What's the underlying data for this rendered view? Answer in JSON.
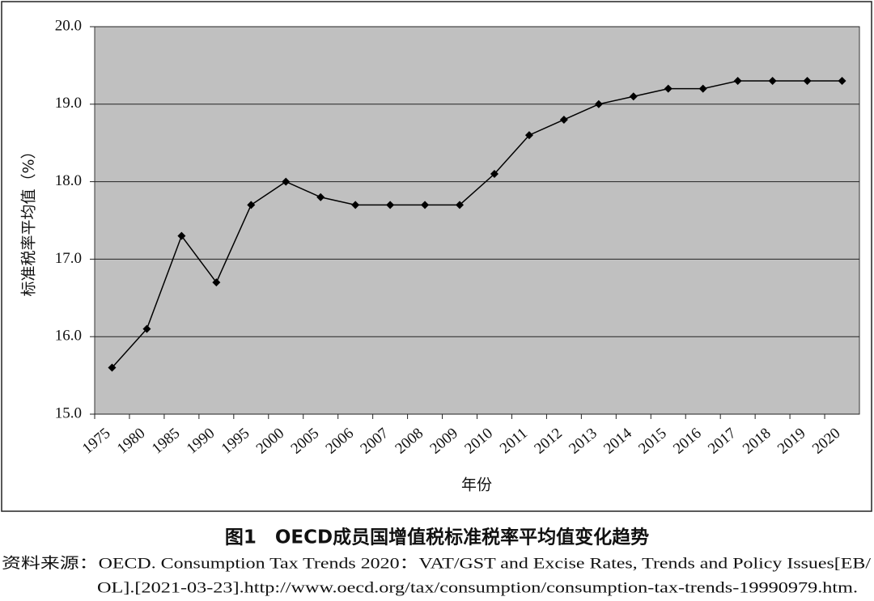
{
  "chart_data": {
    "type": "line",
    "categories": [
      "1975",
      "1980",
      "1985",
      "1990",
      "1995",
      "2000",
      "2005",
      "2006",
      "2007",
      "2008",
      "2009",
      "2010",
      "2011",
      "2012",
      "2013",
      "2014",
      "2015",
      "2016",
      "2017",
      "2018",
      "2019",
      "2020"
    ],
    "values": [
      15.6,
      16.1,
      17.3,
      16.7,
      17.7,
      18.0,
      17.8,
      17.7,
      17.7,
      17.7,
      17.7,
      18.1,
      18.6,
      18.8,
      19.0,
      19.1,
      19.2,
      19.2,
      19.3,
      19.3,
      19.3,
      19.3
    ],
    "color": "#000000",
    "plot_background": "#c0c0c0",
    "ylim": [
      15,
      20
    ],
    "yticks": [
      {
        "value": 15,
        "label": "15.0"
      },
      {
        "value": 16,
        "label": "16.0"
      },
      {
        "value": 17,
        "label": "17.0"
      },
      {
        "value": 18,
        "label": "18.0"
      },
      {
        "value": 19,
        "label": "19.0"
      },
      {
        "value": 20,
        "label": "20.0"
      }
    ],
    "grid": true,
    "y_label": "标准税率平均值（%）",
    "x_label": "年份"
  },
  "caption": "图1　OECD成员国增值税标准税率平均值变化趋势",
  "source": [
    "资料来源：OECD. Consumption Tax Trends 2020：VAT/GST and Excise Rates, Trends and Policy Issues[EB/",
    "OL].[2021-03-23].http://www.oecd.org/tax/consumption/consumption-tax-trends-19990979.htm."
  ]
}
